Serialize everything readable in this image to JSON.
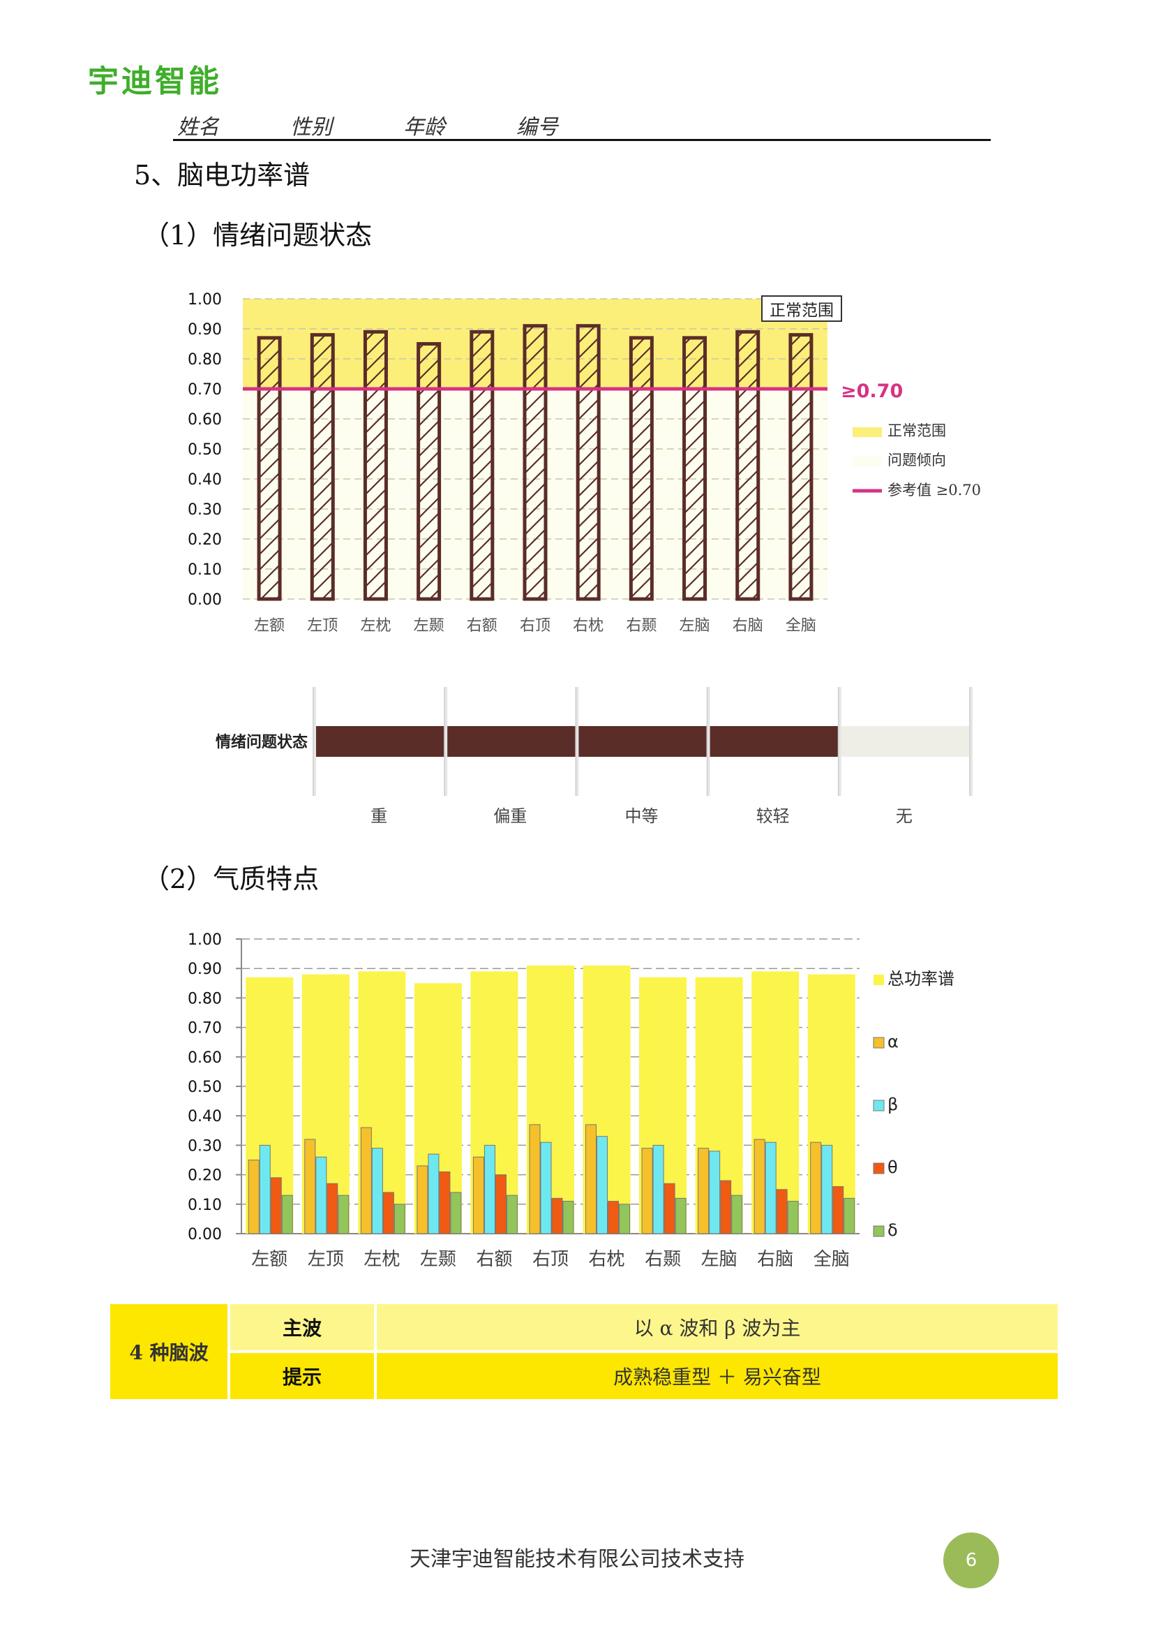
{
  "header": {
    "logo": "宇迪智能",
    "fields": [
      "姓名",
      "性别",
      "年龄",
      "编号"
    ]
  },
  "section_title": "5、脑电功率谱",
  "sub1_title": "（1）情绪问题状态",
  "sub2_title": "（2）气质特点",
  "chart_data": [
    {
      "type": "bar",
      "categories": [
        "左额",
        "左顶",
        "左枕",
        "左颞",
        "右额",
        "右顶",
        "右枕",
        "右颞",
        "左脑",
        "右脑",
        "全脑"
      ],
      "values": [
        0.87,
        0.88,
        0.89,
        0.85,
        0.89,
        0.91,
        0.91,
        0.87,
        0.87,
        0.89,
        0.88
      ],
      "ylim": [
        0,
        1.0
      ],
      "yticks": [
        "0.00",
        "0.10",
        "0.20",
        "0.30",
        "0.40",
        "0.50",
        "0.60",
        "0.70",
        "0.80",
        "0.90",
        "1.00"
      ],
      "reference_line": 0.7,
      "reference_label": "≥0.70",
      "normal_band_label": "正常范围",
      "legend": [
        {
          "label": "正常范围",
          "color": "#fbef7a"
        },
        {
          "label": "问题倾向",
          "color": "#fdfdf0"
        },
        {
          "label": "参考值 ≥0.70",
          "color": "#d63384"
        }
      ],
      "legend_position": "right",
      "grid": true
    },
    {
      "type": "bar",
      "orientation": "horizontal",
      "row_label": "情绪问题状态",
      "levels": [
        "重",
        "偏重",
        "中等",
        "较轻",
        "无"
      ],
      "filled_levels": 4,
      "colors": {
        "fill": "#5b2d28",
        "empty": "#efeee6"
      }
    },
    {
      "type": "bar",
      "categories": [
        "左额",
        "左顶",
        "左枕",
        "左颞",
        "右额",
        "右顶",
        "右枕",
        "右颞",
        "左脑",
        "右脑",
        "全脑"
      ],
      "ylim": [
        0,
        1.0
      ],
      "yticks": [
        "0.00",
        "0.10",
        "0.20",
        "0.30",
        "0.40",
        "0.50",
        "0.60",
        "0.70",
        "0.80",
        "0.90",
        "1.00"
      ],
      "series": [
        {
          "name": "总功率谱",
          "color": "#fbf44a",
          "values": [
            0.87,
            0.88,
            0.89,
            0.85,
            0.89,
            0.91,
            0.91,
            0.87,
            0.87,
            0.89,
            0.88
          ]
        },
        {
          "name": "α",
          "color": "#f6c02a",
          "values": [
            0.25,
            0.32,
            0.36,
            0.23,
            0.26,
            0.37,
            0.37,
            0.29,
            0.29,
            0.32,
            0.31
          ]
        },
        {
          "name": "β",
          "color": "#6ee8f0",
          "values": [
            0.3,
            0.26,
            0.29,
            0.27,
            0.3,
            0.31,
            0.33,
            0.3,
            0.28,
            0.31,
            0.3
          ]
        },
        {
          "name": "θ",
          "color": "#f05a12",
          "values": [
            0.19,
            0.17,
            0.14,
            0.21,
            0.2,
            0.12,
            0.11,
            0.17,
            0.18,
            0.15,
            0.16
          ]
        },
        {
          "name": "δ",
          "color": "#92c55a",
          "values": [
            0.13,
            0.13,
            0.1,
            0.14,
            0.13,
            0.11,
            0.1,
            0.12,
            0.13,
            0.11,
            0.12
          ]
        }
      ],
      "legend_position": "right",
      "grid": true
    }
  ],
  "table": {
    "row_header": "4 种脑波",
    "rows": [
      {
        "label": "主波",
        "value": "以 α 波和 β 波为主"
      },
      {
        "label": "提示",
        "value": "成熟稳重型 ＋ 易兴奋型"
      }
    ],
    "colors": {
      "dark": "#fde600",
      "light": "#fdf68c"
    }
  },
  "footer": {
    "text": "天津宇迪智能技术有限公司技术支持",
    "page": "6"
  }
}
